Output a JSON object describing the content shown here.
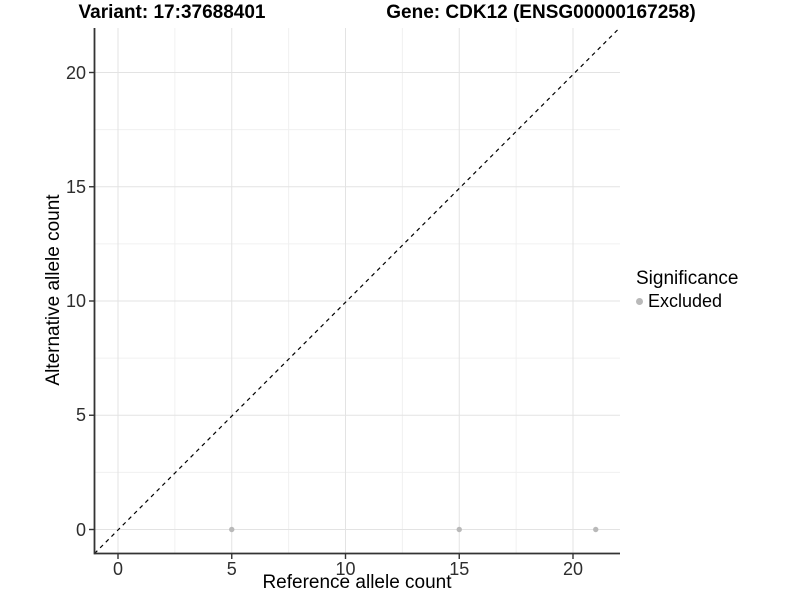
{
  "chart_data": {
    "type": "scatter",
    "titles": [
      "Variant: 17:37688401",
      "Gene: CDK12 (ENSG00000167258)"
    ],
    "xlabel": "Reference allele count",
    "ylabel": "Alternative allele count",
    "x_ticks": [
      0,
      5,
      10,
      15,
      20
    ],
    "y_ticks": [
      0,
      5,
      10,
      15,
      20
    ],
    "xlim": [
      -1.05,
      22.05
    ],
    "ylim": [
      -1.05,
      22.05
    ],
    "grid": {
      "major": true,
      "minor": true
    },
    "reference_line": {
      "kind": "identity",
      "style": "dashed",
      "color": "#000000"
    },
    "legend": {
      "title": "Significance",
      "position": "right",
      "items": [
        {
          "label": "Excluded",
          "color": "#b9b9b9"
        }
      ]
    },
    "series": [
      {
        "name": "Excluded",
        "color": "#b9b9b9",
        "marker": "circle",
        "points": [
          [
            5,
            0
          ],
          [
            15,
            0
          ],
          [
            21,
            0
          ]
        ]
      }
    ]
  },
  "colors": {
    "grid_major": "#e3e3e3",
    "grid_minor": "#f0f0f0",
    "axis": "#333333",
    "tick_text": "#2e2e2e",
    "point": "#b9b9b9",
    "background": "#ffffff"
  }
}
